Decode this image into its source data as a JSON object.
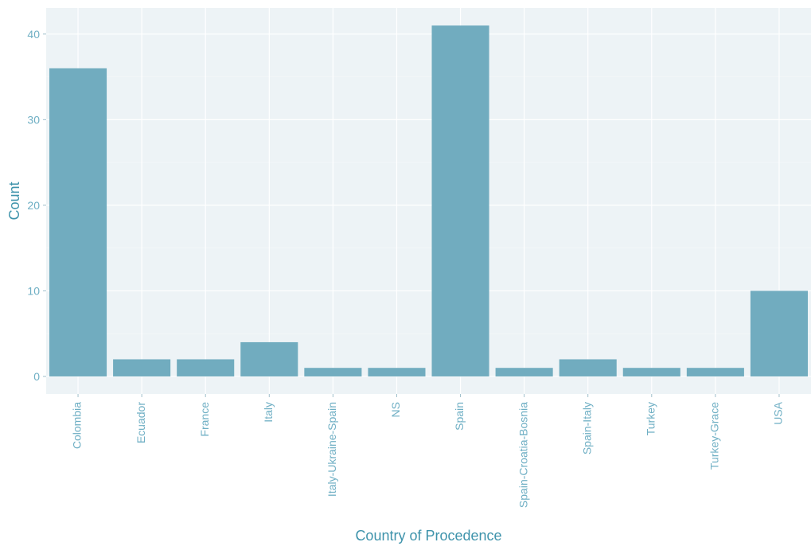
{
  "colors": {
    "panel_background": "#EDF3F6",
    "grid_major": "#FFFFFF",
    "grid_minor": "#F6F9FA",
    "bar_fill": "#71ACBF",
    "axis_text": "#6FAFC4",
    "axis_title": "#3E93AB",
    "tick_mark": "#9FBFCB"
  },
  "chart_data": {
    "type": "bar",
    "title": "",
    "xlabel": "Country of Procedence",
    "ylabel": "Count",
    "categories": [
      "Colombia",
      "Ecuador",
      "France",
      "Italy",
      "Italy-Ukraine-Spain",
      "NS",
      "Spain",
      "Spain-Croatia-Bosnia",
      "Spain-Italy",
      "Turkey",
      "Turkey-Grace",
      "USA"
    ],
    "values": [
      36,
      2,
      2,
      4,
      1,
      1,
      41,
      1,
      2,
      1,
      1,
      10
    ],
    "ylim": [
      -2.05,
      43.05
    ],
    "yticks": [
      0,
      10,
      20,
      30,
      40
    ],
    "grid": true,
    "legend": "none"
  }
}
